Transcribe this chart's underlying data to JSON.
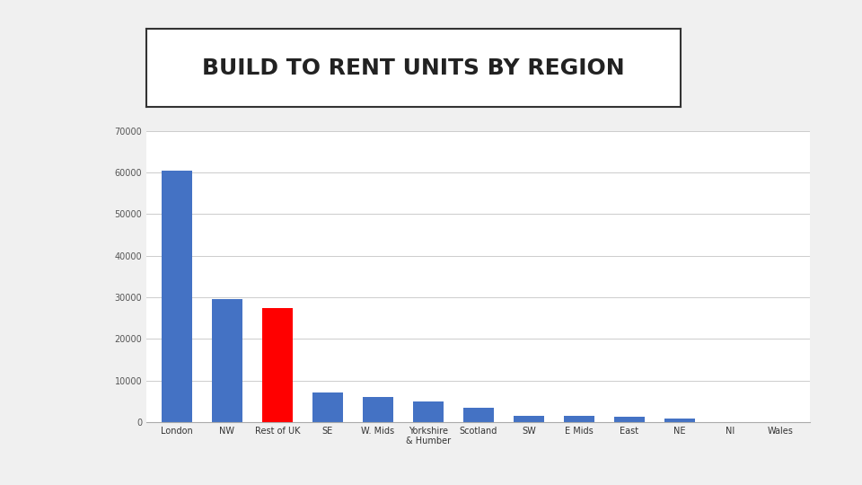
{
  "title": "BUILD TO RENT UNITS BY REGION",
  "categories": [
    "London",
    "NW",
    "Rest of UK",
    "SE",
    "W. Mids",
    "Yorkshire\n& Humber",
    "Scotland",
    "SW",
    "E Mids",
    "East",
    "NE",
    "NI",
    "Wales"
  ],
  "values": [
    60500,
    29500,
    27500,
    7000,
    6000,
    5000,
    3500,
    1500,
    1500,
    1200,
    900,
    0,
    0
  ],
  "bar_colors": [
    "#4472C4",
    "#4472C4",
    "#FF0000",
    "#4472C4",
    "#4472C4",
    "#4472C4",
    "#4472C4",
    "#4472C4",
    "#4472C4",
    "#4472C4",
    "#4472C4",
    "#4472C4",
    "#4472C4"
  ],
  "ylim": [
    0,
    70000
  ],
  "yticks": [
    0,
    10000,
    20000,
    30000,
    40000,
    50000,
    60000,
    70000
  ],
  "background_color": "#f0f0f0",
  "chart_bg": "#ffffff",
  "title_box_color": "#ffffff",
  "grid_color": "#cccccc"
}
